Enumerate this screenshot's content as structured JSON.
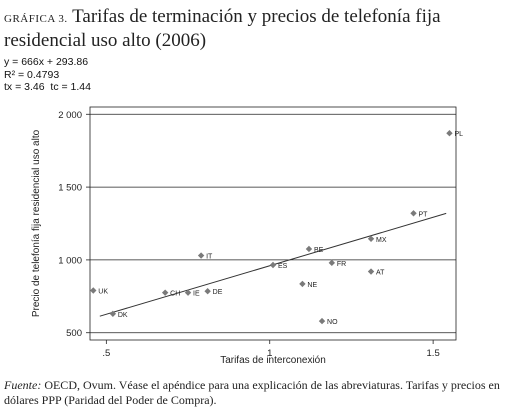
{
  "title": {
    "prefix": "GRÁFICA 3.",
    "text": "Tarifas de terminación y precios de telefonía fija residencial uso alto (2006)"
  },
  "regression_stats": {
    "equation": "y = 666x + 293.86",
    "r2": "R² = 0.4793",
    "t_values": "tx = 3.46  tc = 1.44"
  },
  "footnote": {
    "source_label": "Fuente:",
    "text": "OECD, Ovum. Véase el apéndice para una explicación de las abreviaturas. Tarifas y precios en dólares PPP (Paridad del Poder de Compra)."
  },
  "chart_data": {
    "type": "scatter",
    "xlabel": "Tarifas de interconexión",
    "ylabel": "Precio de telefonía fija residencial uso alto",
    "xlim": [
      0.45,
      1.57
    ],
    "ylim": [
      450,
      2050
    ],
    "x_ticks": [
      0.5,
      1,
      1.5
    ],
    "x_tick_labels": [
      ".5",
      "1",
      "1.5"
    ],
    "y_ticks": [
      500,
      1000,
      1500,
      2000
    ],
    "y_tick_labels": [
      "500",
      "1 000",
      "1 500",
      "2 000"
    ],
    "grid": "horizontal",
    "marker_color": "#7a7a7a",
    "points": [
      {
        "label": "PL",
        "x": 1.55,
        "y": 1870
      },
      {
        "label": "PT",
        "x": 1.44,
        "y": 1320
      },
      {
        "label": "MX",
        "x": 1.31,
        "y": 1145
      },
      {
        "label": "BE",
        "x": 1.12,
        "y": 1075
      },
      {
        "label": "FR",
        "x": 1.19,
        "y": 980
      },
      {
        "label": "AT",
        "x": 1.31,
        "y": 920
      },
      {
        "label": "ES",
        "x": 1.01,
        "y": 965
      },
      {
        "label": "NE",
        "x": 1.1,
        "y": 835
      },
      {
        "label": "NO",
        "x": 1.16,
        "y": 580
      },
      {
        "label": "IT",
        "x": 0.79,
        "y": 1030
      },
      {
        "label": "UK",
        "x": 0.46,
        "y": 790
      },
      {
        "label": "CH",
        "x": 0.68,
        "y": 775
      },
      {
        "label": "IE",
        "x": 0.75,
        "y": 775
      },
      {
        "label": "DE",
        "x": 0.81,
        "y": 785
      },
      {
        "label": "DK",
        "x": 0.52,
        "y": 630
      }
    ],
    "fit_line": {
      "slope": 666,
      "intercept": 293.86,
      "x_range": [
        0.48,
        1.54
      ]
    }
  }
}
